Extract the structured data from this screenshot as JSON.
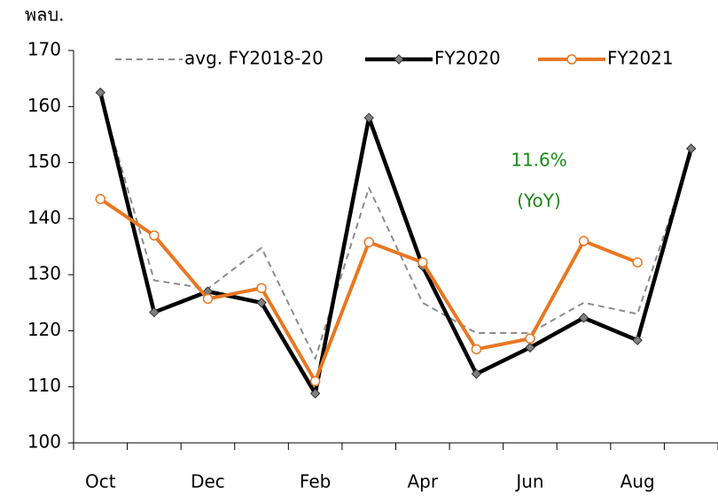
{
  "chart_data": {
    "type": "line",
    "unit_label": "พลบ.",
    "categories": [
      "Oct",
      null,
      "Dec",
      null,
      "Feb",
      null,
      "Apr",
      null,
      "Jun",
      null,
      "Aug",
      null
    ],
    "ylim": [
      100,
      170
    ],
    "yticks": [
      100,
      110,
      120,
      130,
      140,
      150,
      160,
      170
    ],
    "series": [
      {
        "name": "avg. FY2018-20",
        "color": "#8c8c8c",
        "dash": true,
        "marker": "none",
        "values": [
          162,
          129,
          127.5,
          134.8,
          115,
          145.5,
          125,
          119.6,
          119.6,
          125,
          123,
          151.5
        ]
      },
      {
        "name": "FY2020",
        "color": "#000000",
        "dash": false,
        "marker": "diamond",
        "values": [
          162.5,
          123.3,
          127,
          125,
          108.8,
          158,
          131.5,
          112.3,
          117,
          122.3,
          118.3,
          152.5
        ]
      },
      {
        "name": "FY2021",
        "color": "#e87722",
        "dash": false,
        "marker": "circle",
        "values": [
          143.5,
          137,
          125.7,
          127.6,
          111,
          135.8,
          132.2,
          116.7,
          118.6,
          136,
          132.2,
          null
        ]
      }
    ],
    "annotations": [
      {
        "text": "11.6%",
        "color": "#1a8a1a"
      },
      {
        "text": "(YoY)",
        "color": "#1a8a1a"
      }
    ]
  }
}
